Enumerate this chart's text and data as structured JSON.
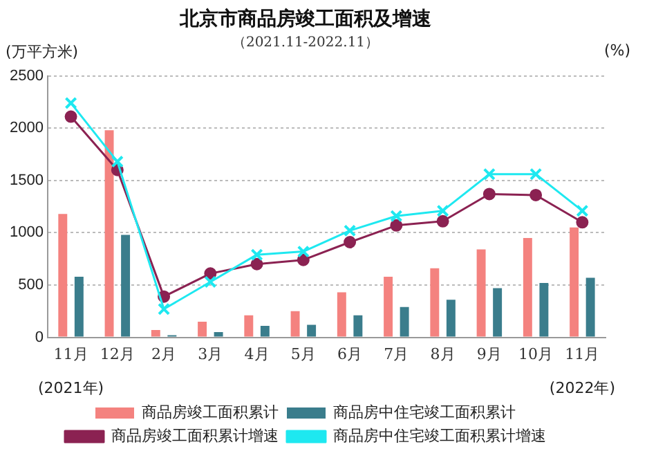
{
  "chart_data": {
    "type": "bar",
    "title": "北京市商品房竣工面积及增速",
    "subtitle": "（2021.11-2022.11）",
    "ylabel": "(万平方米)",
    "y2label": "(%)",
    "categories": [
      "11月",
      "12月",
      "2月",
      "3月",
      "4月",
      "5月",
      "6月",
      "7月",
      "8月",
      "9月",
      "10月",
      "11月"
    ],
    "series": [
      {
        "name": "商品房竣工面积累计",
        "color": "#f4827f",
        "values": [
          1180,
          1980,
          70,
          150,
          210,
          250,
          430,
          580,
          660,
          840,
          950,
          1050
        ]
      },
      {
        "name": "商品房中住宅竣工面积累计",
        "color": "#3a7d8c",
        "values": [
          580,
          980,
          20,
          50,
          110,
          120,
          210,
          290,
          360,
          470,
          520,
          570
        ]
      },
      {
        "name": "商品房竣工面积累计增速",
        "type": "line",
        "color": "#8b2252",
        "marker": "circle",
        "values": [
          2110,
          1600,
          390,
          610,
          700,
          740,
          910,
          1070,
          1110,
          1370,
          1360,
          1100
        ]
      },
      {
        "name": "商品房中住宅竣工面积累计增速",
        "type": "line",
        "color": "#1ee8f0",
        "marker": "cross",
        "values": [
          2240,
          1680,
          270,
          530,
          790,
          820,
          1020,
          1160,
          1210,
          1560,
          1560,
          1210
        ]
      }
    ],
    "ylim": [
      0,
      2500
    ],
    "yticks": [
      0,
      500,
      1000,
      1500,
      2000,
      2500
    ],
    "grid": "y",
    "legend": "bottom",
    "annotations": [
      "(2021年)",
      "(2022年)"
    ]
  }
}
